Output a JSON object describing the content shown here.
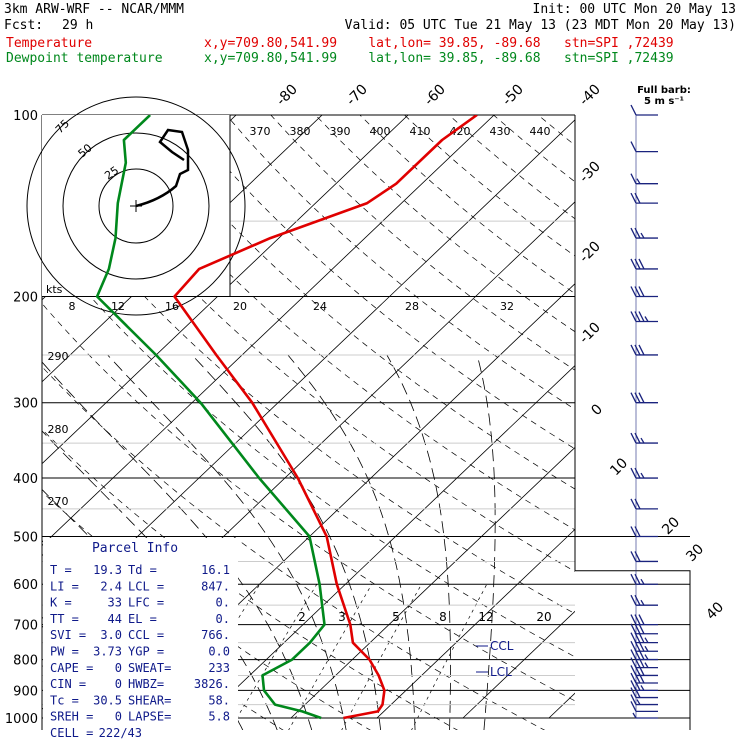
{
  "header": {
    "model": "3km ARW-WRF -- NCAR/MMM",
    "init": "Init: 00 UTC Mon 20 May 13",
    "fcst_label": "Fcst:",
    "fcst_value": "29 h",
    "valid": "Valid: 05 UTC Tue 21 May 13 (23 MDT Mon 20 May 13)",
    "temp_label": "Temperature",
    "dew_label": "Dewpoint temperature",
    "temp_meta": "x,y=709.80,541.99    lat,lon= 39.85, -89.68   stn=SPI ,72439",
    "dew_meta": "x,y=709.80,541.99    lat,lon= 39.85, -89.68   stn=SPI ,72439"
  },
  "colors": {
    "temperature": "#e00000",
    "dewpoint": "#00881c",
    "info": "#0f1a8a",
    "barbs": "#1a237e"
  },
  "barb_legend": {
    "line1": "Full barb:",
    "line2": "5 m s⁻¹"
  },
  "hodograph": {
    "unit_label": "kts",
    "ring_labels": [
      "75",
      "50",
      "25"
    ],
    "speed_ticks": [
      "8",
      "12",
      "16",
      "20",
      "24",
      "28",
      "32"
    ]
  },
  "chart_data": {
    "type": "skew-t",
    "pressure_levels_hpa": [
      "100",
      "200",
      "300",
      "400",
      "500",
      "600",
      "700",
      "800",
      "900",
      "1000"
    ],
    "isotherm_labels_c": [
      "-80",
      "-70",
      "-60",
      "-50",
      "-40",
      "-30",
      "-20",
      "-10",
      "0",
      "10",
      "20",
      "30",
      "40"
    ],
    "theta_labels_k": [
      "370",
      "380",
      "390",
      "400",
      "410",
      "420",
      "430",
      "440"
    ],
    "dry_adiabat_labels_k": [
      "290",
      "280",
      "270"
    ],
    "mixing_ratio_labels_gkg": [
      "2",
      "3",
      "5",
      "8",
      "12",
      "20"
    ],
    "level_markers": [
      "CCL",
      "LCL"
    ],
    "temperature": [
      {
        "p": 1000,
        "t": 16.1
      },
      {
        "p": 975,
        "t": 19.3
      },
      {
        "p": 950,
        "t": 19.0
      },
      {
        "p": 900,
        "t": 17.5
      },
      {
        "p": 850,
        "t": 15.0
      },
      {
        "p": 800,
        "t": 12.0
      },
      {
        "p": 750,
        "t": 8.0
      },
      {
        "p": 700,
        "t": 5.5
      },
      {
        "p": 600,
        "t": -1.0
      },
      {
        "p": 500,
        "t": -8.0
      },
      {
        "p": 400,
        "t": -18.5
      },
      {
        "p": 300,
        "t": -33.0
      },
      {
        "p": 250,
        "t": -43.0
      },
      {
        "p": 200,
        "t": -55.0
      },
      {
        "p": 180,
        "t": -55.5
      },
      {
        "p": 160,
        "t": -51.0
      },
      {
        "p": 140,
        "t": -44.0
      },
      {
        "p": 130,
        "t": -43.0
      },
      {
        "p": 110,
        "t": -43.0
      },
      {
        "p": 100,
        "t": -42.0
      }
    ],
    "dewpoint": [
      {
        "p": 1000,
        "t": 13.5
      },
      {
        "p": 975,
        "t": 10.5
      },
      {
        "p": 950,
        "t": 6.5
      },
      {
        "p": 900,
        "t": 3.5
      },
      {
        "p": 850,
        "t": 1.5
      },
      {
        "p": 800,
        "t": 3.0
      },
      {
        "p": 750,
        "t": 3.0
      },
      {
        "p": 700,
        "t": 2.5
      },
      {
        "p": 600,
        "t": -3.0
      },
      {
        "p": 500,
        "t": -10.0
      },
      {
        "p": 400,
        "t": -23.0
      },
      {
        "p": 300,
        "t": -39.0
      },
      {
        "p": 250,
        "t": -50.0
      },
      {
        "p": 200,
        "t": -64.0
      },
      {
        "p": 180,
        "t": -66.0
      },
      {
        "p": 160,
        "t": -69.0
      },
      {
        "p": 140,
        "t": -73.0
      },
      {
        "p": 120,
        "t": -77.0
      },
      {
        "p": 110,
        "t": -80.0
      },
      {
        "p": 100,
        "t": -80.0
      }
    ],
    "wind_barbs": [
      {
        "p": 1000,
        "kt": 5
      },
      {
        "p": 975,
        "kt": 10
      },
      {
        "p": 950,
        "kt": 15
      },
      {
        "p": 925,
        "kt": 20
      },
      {
        "p": 900,
        "kt": 25
      },
      {
        "p": 875,
        "kt": 30
      },
      {
        "p": 850,
        "kt": 30
      },
      {
        "p": 825,
        "kt": 35
      },
      {
        "p": 800,
        "kt": 35
      },
      {
        "p": 775,
        "kt": 35
      },
      {
        "p": 750,
        "kt": 35
      },
      {
        "p": 725,
        "kt": 30
      },
      {
        "p": 700,
        "kt": 30
      },
      {
        "p": 650,
        "kt": 25
      },
      {
        "p": 600,
        "kt": 25
      },
      {
        "p": 550,
        "kt": 20
      },
      {
        "p": 500,
        "kt": 20
      },
      {
        "p": 450,
        "kt": 20
      },
      {
        "p": 400,
        "kt": 25
      },
      {
        "p": 350,
        "kt": 25
      },
      {
        "p": 300,
        "kt": 30
      },
      {
        "p": 250,
        "kt": 30
      },
      {
        "p": 220,
        "kt": 35
      },
      {
        "p": 200,
        "kt": 30
      },
      {
        "p": 180,
        "kt": 30
      },
      {
        "p": 160,
        "kt": 25
      },
      {
        "p": 140,
        "kt": 20
      },
      {
        "p": 130,
        "kt": 15
      },
      {
        "p": 115,
        "kt": 10
      },
      {
        "p": 100,
        "kt": 10
      }
    ]
  },
  "parcel_info": {
    "title": "Parcel Info",
    "rows": [
      [
        "T  =",
        "19.3",
        "Td =",
        "16.1"
      ],
      [
        "LI =",
        "2.4",
        "LCL =",
        "847."
      ],
      [
        "K  =",
        "33",
        "LFC =",
        "0."
      ],
      [
        "TT =",
        "44",
        "EL =",
        "0."
      ],
      [
        "SVI =",
        "3.0",
        "CCL =",
        "766."
      ],
      [
        "PW =",
        "3.73",
        "YGP =",
        "0.0"
      ],
      [
        "CAPE =",
        "0",
        "SWEAT=",
        "233"
      ],
      [
        "CIN =",
        "0",
        "HWBZ=",
        "3826."
      ],
      [
        "Tc =",
        "30.5",
        "SHEAR=",
        "58."
      ],
      [
        "SREH =",
        "0",
        "LAPSE=",
        "5.8"
      ]
    ],
    "cell_label": "CELL =",
    "cell_value": "222/43"
  }
}
